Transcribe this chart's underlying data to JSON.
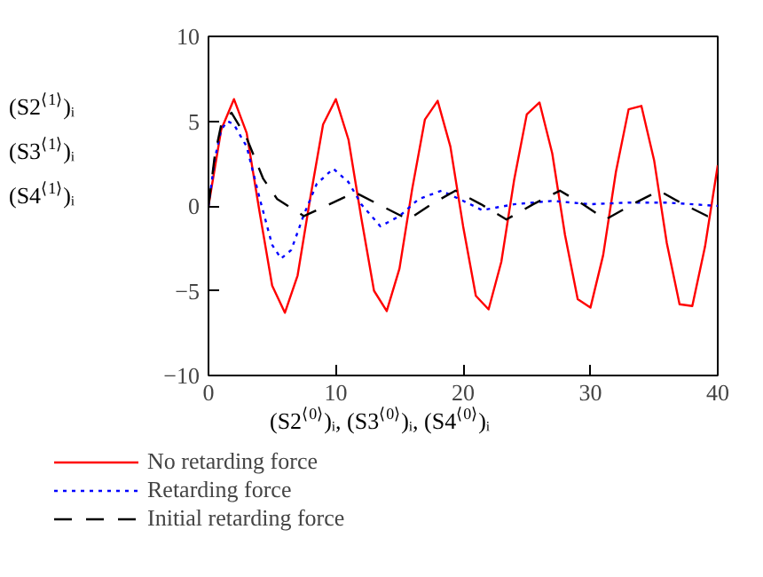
{
  "chart_data": {
    "type": "line",
    "xlabel": "(S2$^{⟨0⟩}$)ᵢ, (S3$^{⟨0⟩}$)ᵢ, (S4$^{⟨0⟩}$)ᵢ",
    "ylabel": "(S2$^{⟨1⟩}$)ᵢ\n(S3$^{⟨1⟩}$)ᵢ\n(S4$^{⟨1⟩}$)ᵢ",
    "xlim": [
      0,
      40
    ],
    "ylim": [
      -10,
      10
    ],
    "xticks": [
      0,
      10,
      20,
      30,
      40
    ],
    "yticks": [
      -10,
      -5,
      0,
      5,
      10
    ],
    "grid": false,
    "legend": "bottom",
    "marker": "none",
    "series": [
      {
        "name": "No retarding force",
        "color": "#ff0000",
        "line_style": "solid",
        "x": [
          0,
          1,
          2,
          3,
          4,
          5,
          6,
          7,
          8,
          9,
          10,
          11,
          12,
          13,
          14,
          15,
          16,
          17,
          18,
          19,
          20,
          21,
          22,
          23,
          24,
          25,
          26,
          27,
          28,
          29,
          30,
          31,
          32,
          33,
          34,
          35,
          36,
          37,
          38,
          39,
          40
        ],
        "values": [
          0,
          4.5,
          6.3,
          4.3,
          -0.3,
          -4.7,
          -6.3,
          -4.1,
          0.5,
          4.8,
          6.3,
          3.9,
          -0.7,
          -5.0,
          -6.2,
          -3.7,
          1.0,
          5.1,
          6.2,
          3.5,
          -1.2,
          -5.3,
          -6.1,
          -3.3,
          1.5,
          5.4,
          6.1,
          3.1,
          -1.7,
          -5.5,
          -6.0,
          -2.9,
          2.0,
          5.7,
          5.9,
          2.7,
          -2.2,
          -5.8,
          -5.9,
          -2.4,
          2.4
        ]
      },
      {
        "name": "Retarding force",
        "color": "#0000ff",
        "line_style": "dotted",
        "x": [
          0,
          0.5,
          1,
          1.5,
          2,
          3,
          4,
          5,
          5.7,
          6.5,
          7.5,
          8.5,
          9.8,
          11,
          12,
          13.5,
          15,
          16.5,
          18.3,
          20,
          21.5,
          24,
          27,
          30,
          33,
          36,
          40
        ],
        "values": [
          0,
          2.8,
          4.5,
          5.0,
          4.8,
          3.5,
          0.5,
          -2.3,
          -3.1,
          -2.6,
          -0.5,
          1.3,
          2.2,
          1.4,
          0.1,
          -1.2,
          -0.6,
          0.4,
          0.9,
          0.3,
          -0.25,
          0.1,
          0.3,
          0.1,
          0.2,
          0.2,
          0
        ]
      },
      {
        "name": "Initial retarding force",
        "color": "#000000",
        "line_style": "dashed",
        "x": [
          0,
          0.5,
          1,
          1.8,
          3,
          4.3,
          5.4,
          7.5,
          9.5,
          11.5,
          13.6,
          15.7,
          17.5,
          19.4,
          21.4,
          23.4,
          25.5,
          27.6,
          29.4,
          31.2,
          33.3,
          35.4,
          37.3,
          39.2,
          40
        ],
        "values": [
          0,
          3.0,
          4.8,
          5.5,
          4.0,
          1.6,
          0.4,
          -0.6,
          0.1,
          0.8,
          0,
          -0.8,
          0.1,
          0.9,
          0.1,
          -0.8,
          0.1,
          0.9,
          0.1,
          -0.8,
          0.1,
          0.9,
          0.1,
          -0.6,
          -0.4
        ]
      }
    ]
  }
}
